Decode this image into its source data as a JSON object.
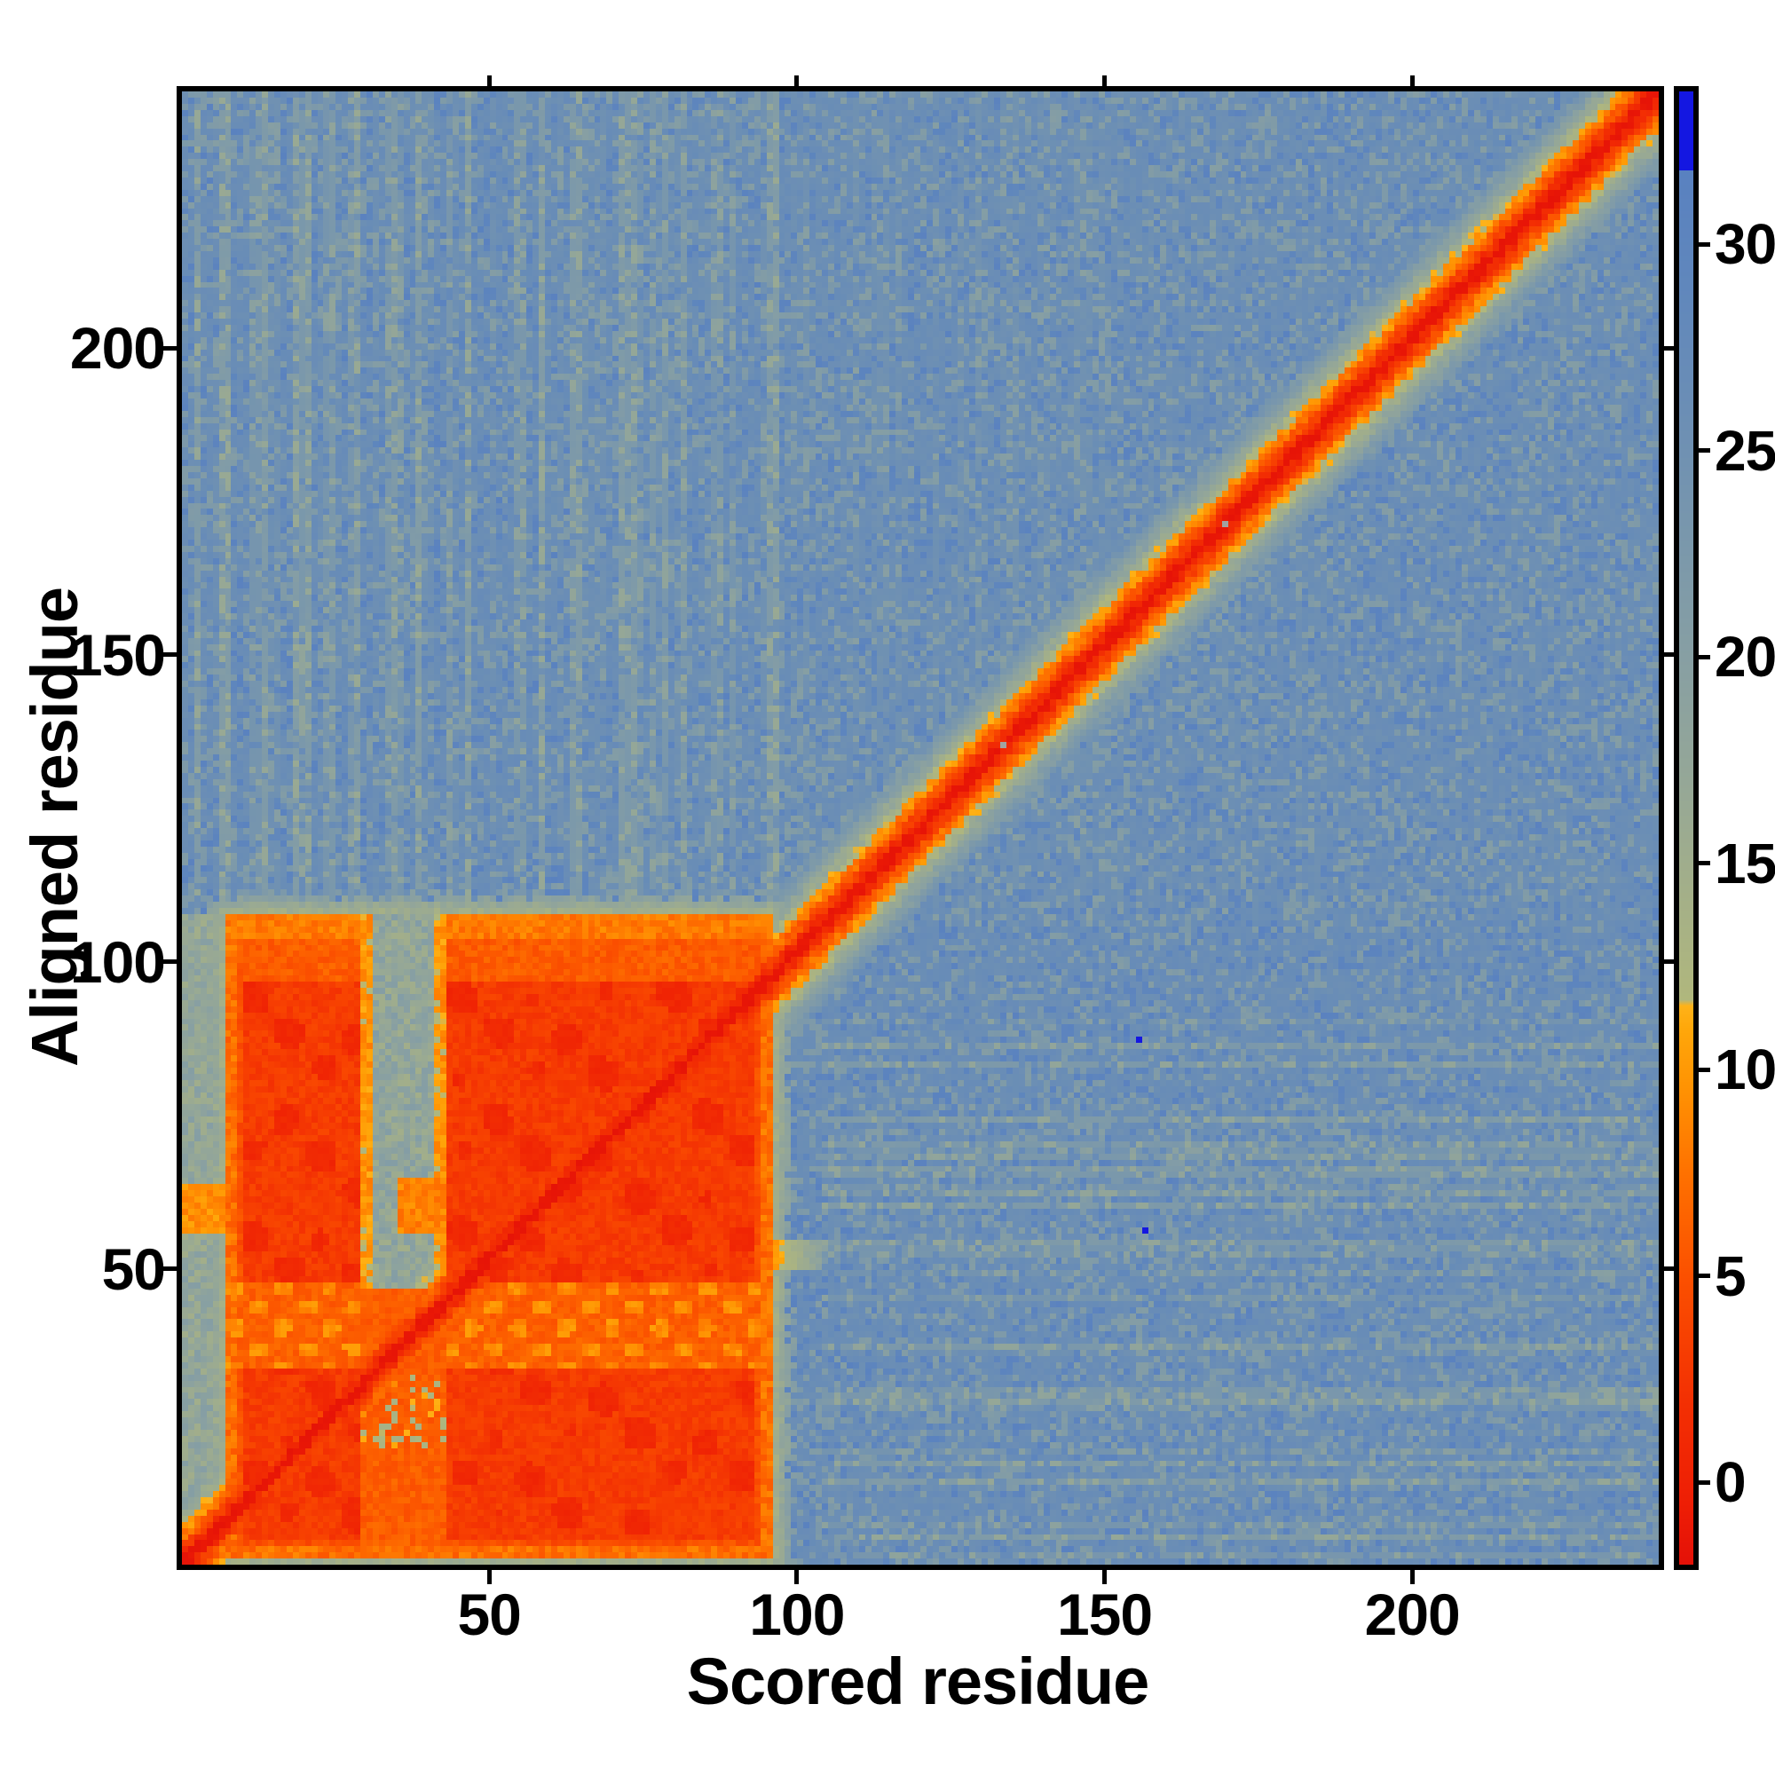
{
  "chart_data": {
    "type": "heatmap",
    "title": "",
    "xlabel": "Scored residue",
    "ylabel": "Aligned residue",
    "x_ticks": [
      50,
      100,
      150,
      200
    ],
    "y_ticks": [
      50,
      100,
      150,
      200
    ],
    "x_range": [
      1,
      240
    ],
    "y_range": [
      1,
      240
    ],
    "grid_n": 240,
    "legend_position": "right-colorbar",
    "grid": false,
    "colorbar": {
      "ticks": [
        0,
        5,
        10,
        15,
        20,
        25,
        30
      ],
      "range": [
        -2.0,
        33.7
      ],
      "cap_value": 31.8,
      "cap_color": "#1417e1",
      "masked_color": "#a2a2a2"
    },
    "colormap_stops": [
      [
        -2.3,
        [
          226,
          14,
          8
        ]
      ],
      [
        -0.5,
        [
          238,
          30,
          5
        ]
      ],
      [
        2.0,
        [
          243,
          48,
          3
        ]
      ],
      [
        5.0,
        [
          251,
          80,
          0
        ]
      ],
      [
        7.5,
        [
          254,
          113,
          0
        ]
      ],
      [
        9.6,
        [
          255,
          147,
          3
        ]
      ],
      [
        11.0,
        [
          255,
          167,
          10
        ]
      ],
      [
        11.55,
        [
          255,
          178,
          24
        ]
      ],
      [
        11.7,
        [
          176,
          183,
          125
        ]
      ],
      [
        14.0,
        [
          165,
          176,
          135
        ]
      ],
      [
        17.0,
        [
          149,
          167,
          151
        ]
      ],
      [
        20.0,
        [
          135,
          159,
          163
        ]
      ],
      [
        23.0,
        [
          121,
          151,
          172
        ]
      ],
      [
        26.0,
        [
          107,
          142,
          181
        ]
      ],
      [
        29.0,
        [
          96,
          135,
          188
        ]
      ],
      [
        31.8,
        [
          89,
          129,
          192
        ]
      ]
    ],
    "regions": {
      "core_block": {
        "x": [
          8,
          96
        ],
        "y": [
          2,
          106
        ]
      },
      "left_fringe_cols": [
        1,
        7
      ],
      "vertical_gap": {
        "x": [
          30,
          43
        ],
        "y_split": 46
      },
      "horizontal_band": {
        "y": [
          33,
          46
        ]
      },
      "diagonal_band_halfwidth": 6,
      "right_spur": {
        "x": [
          96,
          104
        ],
        "y": [
          49,
          53
        ]
      },
      "left_spur": {
        "x": [
          6,
          7
        ],
        "y": [
          55,
          62
        ]
      }
    },
    "outlier_cells": [
      {
        "x": 156,
        "y": 86,
        "value": 33.5
      },
      {
        "x": 157,
        "y": 55,
        "value": 33.5
      }
    ],
    "masked_cells": [
      {
        "x": 170,
        "y": 170
      },
      {
        "x": 134,
        "y": 134
      }
    ]
  }
}
